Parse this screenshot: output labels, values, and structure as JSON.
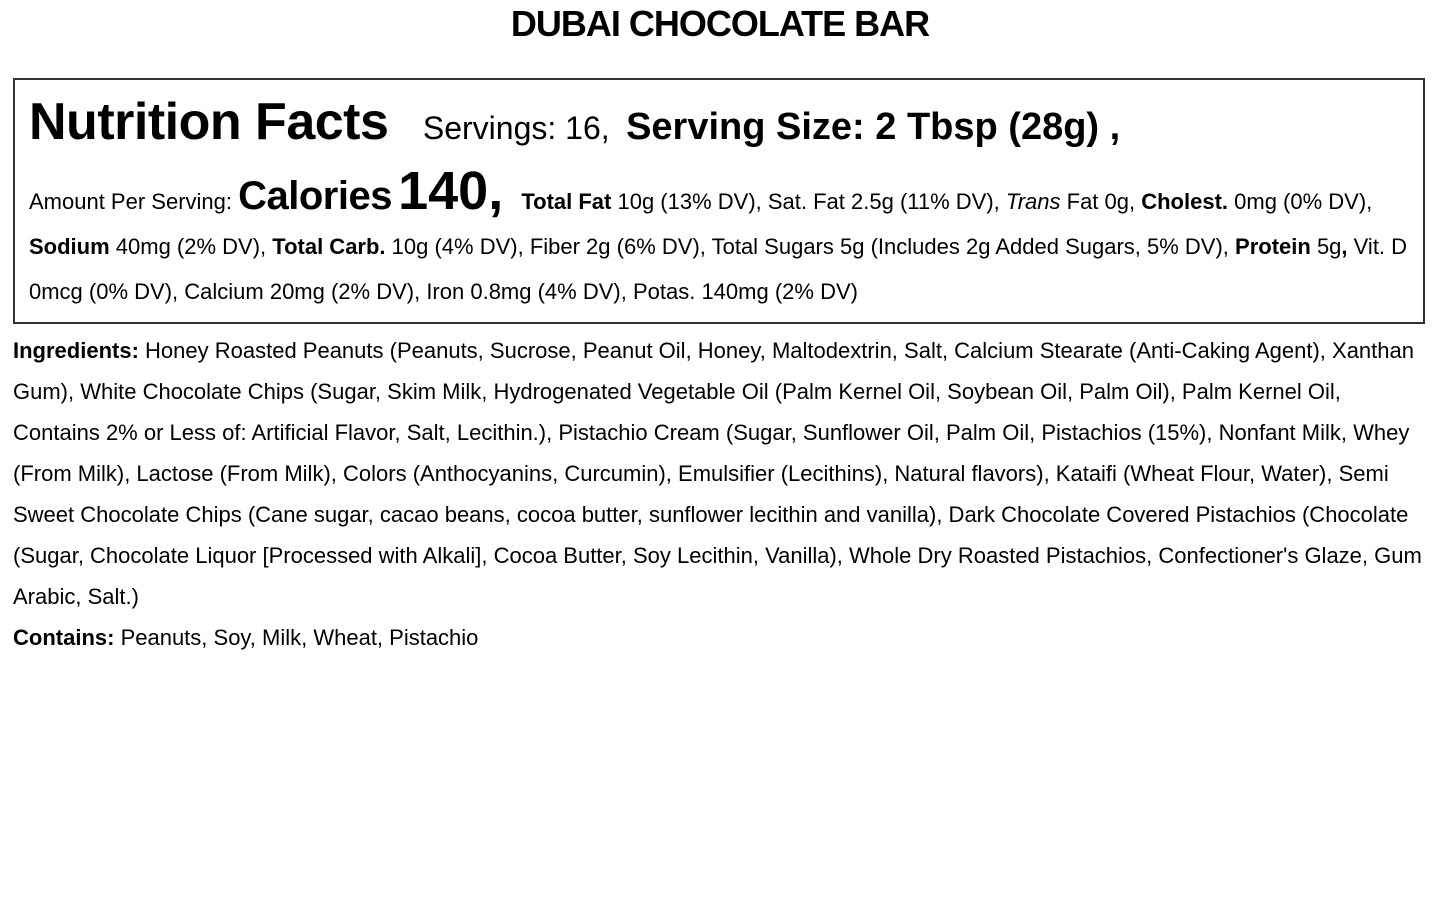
{
  "product_title": "DUBAI CHOCOLATE BAR",
  "nutrition": {
    "heading": "Nutrition Facts",
    "servings": "Servings: 16,",
    "serving_size": "Serving Size: 2 Tbsp (28g) ,",
    "amount_label": "Amount Per Serving:",
    "calories_label": "Calories",
    "calories_value": "140,",
    "lines": [
      [
        {
          "t": "Total Fat",
          "s": "b"
        },
        {
          "t": " 10g (13% DV), Sat. Fat 2.5g (11% DV), ",
          "s": "n"
        },
        {
          "t": "Trans",
          "s": "i"
        },
        {
          "t": " Fat 0g,",
          "s": "n"
        }
      ],
      [
        {
          "t": "Cholest.",
          "s": "b"
        },
        {
          "t": " 0mg (0% DV), ",
          "s": "n"
        },
        {
          "t": "Sodium",
          "s": "b"
        },
        {
          "t": " 40mg (2% DV), ",
          "s": "n"
        },
        {
          "t": "Total Carb.",
          "s": "b"
        },
        {
          "t": " 10g (4% DV), Fiber 2g (6% DV), Total Sugars 5g",
          "s": "n"
        }
      ],
      [
        {
          "t": "(Includes 2g Added Sugars, 5% DV), ",
          "s": "n"
        },
        {
          "t": "Protein",
          "s": "b"
        },
        {
          "t": " 5g",
          "s": "n"
        },
        {
          "t": ",",
          "s": "b"
        },
        {
          "t": " Vit. D 0mcg (0% DV), Calcium 20mg (2% DV), Iron 0.8mg (4% DV),",
          "s": "n"
        }
      ],
      [
        {
          "t": "Potas. 140mg (2% DV)",
          "s": "n"
        }
      ]
    ]
  },
  "ingredients": {
    "label": "Ingredients:",
    "lines": [
      " Honey Roasted Peanuts (Peanuts, Sucrose, Peanut Oil, Honey, Maltodextrin, Salt, Calcium Stearate",
      "(Anti-Caking Agent), Xanthan Gum), White Chocolate Chips (Sugar, Skim Milk, Hydrogenated Vegetable Oil (Palm",
      "Kernel Oil, Soybean Oil, Palm Oil), Palm Kernel Oil, Contains 2% or Less of: Artificial Flavor, Salt, Lecithin.), Pistachio",
      "Cream (Sugar, Sunflower Oil, Palm Oil, Pistachios (15%), Nonfant Milk, Whey (From Milk), Lactose (From Milk),",
      "Colors (Anthocyanins, Curcumin), Emulsifier (Lecithins), Natural flavors), Kataifi (Wheat Flour, Water), Semi Sweet",
      "Chocolate Chips (Cane sugar, cacao beans, cocoa butter, sunflower lecithin and vanilla), Dark Chocolate Covered",
      "Pistachios (Chocolate (Sugar, Chocolate Liquor [Processed with Alkali], Cocoa Butter, Soy Lecithin, Vanilla), Whole",
      "Dry Roasted Pistachios, Confectioner's Glaze, Gum Arabic, Salt.)"
    ]
  },
  "contains": {
    "label": "Contains:",
    "value": " Peanuts, Soy, Milk, Wheat, Pistachio"
  }
}
